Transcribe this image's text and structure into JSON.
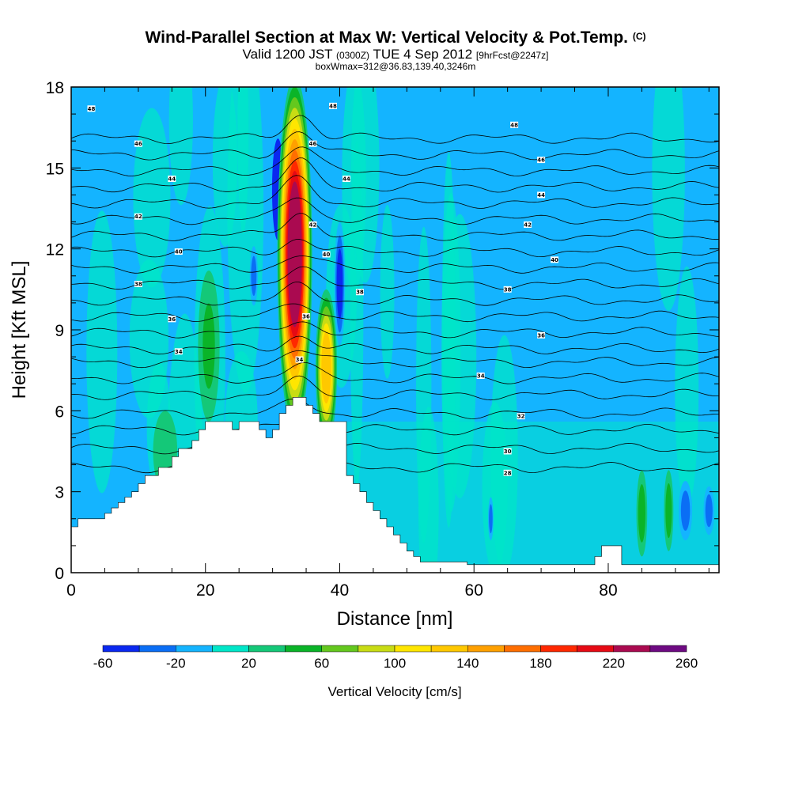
{
  "header": {
    "title": "Wind-Parallel Section at Max W: Vertical Velocity & Pot.Temp.",
    "title_mark": "(C)",
    "valid_main": "Valid 1200 JST",
    "valid_utc": "(0300Z)",
    "valid_date": "TUE 4 Sep 2012",
    "forecast": "[9hrFcst@2247z]",
    "box_info": "boxWmax=312@36.83,139.40,3246m"
  },
  "chart_data": {
    "type": "heatmap",
    "xlabel": "Distance [nm]",
    "ylabel": "Height [Kft MSL]",
    "xlim": [
      0,
      96.5
    ],
    "ylim": [
      0,
      18
    ],
    "x_ticks": [
      0,
      20,
      40,
      60,
      80
    ],
    "y_ticks": [
      0,
      3,
      6,
      9,
      12,
      15,
      18
    ],
    "x_tick_labels": [
      "0",
      "20",
      "40",
      "60",
      "80"
    ],
    "y_tick_labels": [
      "0",
      "3",
      "6",
      "9",
      "12",
      "15",
      "18"
    ],
    "terrain": [
      [
        0,
        1.7
      ],
      [
        1,
        2.0
      ],
      [
        4,
        2.0
      ],
      [
        5,
        2.2
      ],
      [
        6,
        2.4
      ],
      [
        7,
        2.6
      ],
      [
        8,
        2.8
      ],
      [
        9,
        3.0
      ],
      [
        10,
        3.3
      ],
      [
        11,
        3.6
      ],
      [
        13,
        3.9
      ],
      [
        15,
        4.3
      ],
      [
        16,
        4.6
      ],
      [
        18,
        4.9
      ],
      [
        19,
        5.3
      ],
      [
        20,
        5.6
      ],
      [
        23,
        5.6
      ],
      [
        24,
        5.3
      ],
      [
        25,
        5.6
      ],
      [
        27,
        5.6
      ],
      [
        28,
        5.3
      ],
      [
        29,
        5.0
      ],
      [
        30,
        5.3
      ],
      [
        31,
        5.9
      ],
      [
        32,
        6.2
      ],
      [
        33,
        6.5
      ],
      [
        35,
        6.2
      ],
      [
        36,
        5.9
      ],
      [
        37,
        5.6
      ],
      [
        40,
        5.6
      ],
      [
        41,
        3.6
      ],
      [
        42,
        3.3
      ],
      [
        43,
        3.0
      ],
      [
        44,
        2.6
      ],
      [
        45,
        2.3
      ],
      [
        46,
        2.0
      ],
      [
        47,
        1.7
      ],
      [
        48,
        1.4
      ],
      [
        49,
        1.1
      ],
      [
        50,
        0.8
      ],
      [
        51,
        0.6
      ],
      [
        52,
        0.4
      ],
      [
        58,
        0.4
      ],
      [
        59,
        0.3
      ],
      [
        60,
        0.3
      ],
      [
        77,
        0.3
      ],
      [
        78,
        0.6
      ],
      [
        79,
        1.0
      ],
      [
        81,
        1.0
      ],
      [
        82,
        0.3
      ],
      [
        96.5,
        0.3
      ]
    ],
    "colorbar": {
      "title": "Vertical Velocity [cm/s]",
      "levels": [
        -60,
        -40,
        -20,
        0,
        20,
        40,
        60,
        80,
        100,
        120,
        140,
        160,
        180,
        200,
        220,
        240,
        260
      ],
      "tick_labels": [
        "-60",
        "-20",
        "20",
        "60",
        "100",
        "140",
        "180",
        "220",
        "260"
      ],
      "colors": [
        "#0a28f0",
        "#0a6ef5",
        "#14b4ff",
        "#00e6c8",
        "#14c878",
        "#0ab428",
        "#64c81e",
        "#c8dc14",
        "#ffe600",
        "#ffc800",
        "#ffa000",
        "#ff6e00",
        "#ff2800",
        "#e60a14",
        "#aa0a50",
        "#6e0a82"
      ]
    },
    "contour_labels": [
      {
        "x": 3,
        "y": 17.2,
        "text": "48"
      },
      {
        "x": 10,
        "y": 15.9,
        "text": "46"
      },
      {
        "x": 15,
        "y": 14.6,
        "text": "44"
      },
      {
        "x": 10,
        "y": 13.2,
        "text": "42"
      },
      {
        "x": 16,
        "y": 11.9,
        "text": "40"
      },
      {
        "x": 10,
        "y": 10.7,
        "text": "38"
      },
      {
        "x": 15,
        "y": 9.4,
        "text": "36"
      },
      {
        "x": 16,
        "y": 8.2,
        "text": "34"
      },
      {
        "x": 39,
        "y": 17.3,
        "text": "48"
      },
      {
        "x": 36,
        "y": 15.9,
        "text": "46"
      },
      {
        "x": 41,
        "y": 14.6,
        "text": "44"
      },
      {
        "x": 36,
        "y": 12.9,
        "text": "42"
      },
      {
        "x": 38,
        "y": 11.8,
        "text": "40"
      },
      {
        "x": 43,
        "y": 10.4,
        "text": "38"
      },
      {
        "x": 35,
        "y": 9.5,
        "text": "36"
      },
      {
        "x": 34,
        "y": 7.9,
        "text": "34"
      },
      {
        "x": 66,
        "y": 16.6,
        "text": "48"
      },
      {
        "x": 70,
        "y": 15.3,
        "text": "46"
      },
      {
        "x": 70,
        "y": 14.0,
        "text": "44"
      },
      {
        "x": 68,
        "y": 12.9,
        "text": "42"
      },
      {
        "x": 72,
        "y": 11.6,
        "text": "40"
      },
      {
        "x": 65,
        "y": 10.5,
        "text": "38"
      },
      {
        "x": 70,
        "y": 8.8,
        "text": "36"
      },
      {
        "x": 61,
        "y": 7.3,
        "text": "34"
      },
      {
        "x": 67,
        "y": 5.8,
        "text": "32"
      },
      {
        "x": 65,
        "y": 4.5,
        "text": "30"
      },
      {
        "x": 65,
        "y": 3.7,
        "text": "28"
      }
    ],
    "contour_levels": [
      16.1,
      15.5,
      14.9,
      14.3,
      13.7,
      13.1,
      12.5,
      11.9,
      11.3,
      10.7,
      10.1,
      9.5,
      8.9,
      8.3,
      7.8,
      7.2,
      6.6,
      5.9,
      5.3,
      4.6,
      3.9
    ],
    "series": [
      {
        "kind": "downdraft",
        "x": 30.8,
        "y": 14.2,
        "rx": 1.3,
        "ry": 2.8,
        "w": -45
      },
      {
        "kind": "downdraft",
        "x": 40.0,
        "y": 10.7,
        "rx": 0.8,
        "ry": 2.3,
        "w": -50
      },
      {
        "kind": "downdraft",
        "x": 27.2,
        "y": 11.0,
        "rx": 0.6,
        "ry": 1.1,
        "w": -30
      },
      {
        "kind": "downdraft",
        "x": 62.5,
        "y": 2.0,
        "rx": 0.4,
        "ry": 0.8,
        "w": -35
      },
      {
        "kind": "downdraft",
        "x": 91.5,
        "y": 2.3,
        "rx": 1.0,
        "ry": 1.1,
        "w": -35
      },
      {
        "kind": "downdraft",
        "x": 95.0,
        "y": 2.3,
        "rx": 0.8,
        "ry": 0.9,
        "w": -30
      },
      {
        "kind": "updraft",
        "x": 20.5,
        "y": 8.4,
        "rx": 1.6,
        "ry": 2.8,
        "w": 50
      },
      {
        "kind": "updraft",
        "x": 14.0,
        "y": 4.5,
        "rx": 1.8,
        "ry": 1.5,
        "w": 35
      },
      {
        "kind": "updraft",
        "x": 33.3,
        "y": 11.8,
        "rx": 2.6,
        "ry": 6.6,
        "w": 220
      },
      {
        "kind": "updraft",
        "x": 38.0,
        "y": 7.6,
        "rx": 1.6,
        "ry": 2.9,
        "w": 120
      },
      {
        "kind": "updraft",
        "x": 85.0,
        "y": 2.2,
        "rx": 0.8,
        "ry": 1.6,
        "w": 45
      },
      {
        "kind": "updraft",
        "x": 89.0,
        "y": 2.3,
        "rx": 0.7,
        "ry": 1.5,
        "w": 40
      }
    ]
  }
}
